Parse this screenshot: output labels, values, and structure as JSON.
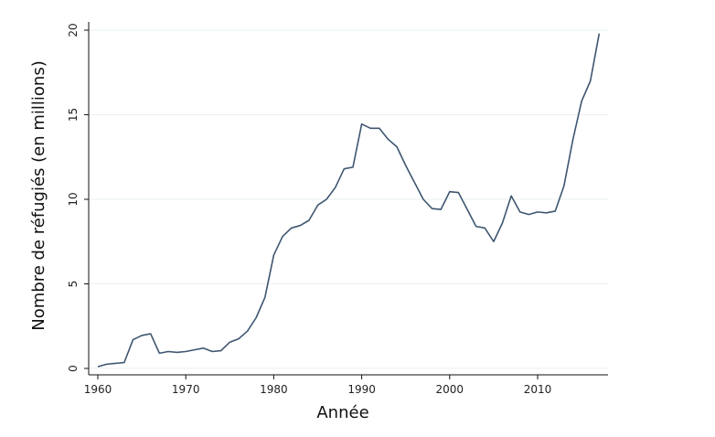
{
  "chart_data": {
    "type": "line",
    "title": "",
    "xlabel": "Année",
    "ylabel": "Nombre de réfugiés (en millions)",
    "xlim": [
      1960,
      2017
    ],
    "ylim": [
      0,
      20
    ],
    "x_ticks": [
      1960,
      1970,
      1980,
      1990,
      2000,
      2010
    ],
    "y_ticks": [
      0,
      5,
      10,
      15,
      20
    ],
    "grid": true,
    "legend": "none",
    "line_color": "#3e5670",
    "grid_color": "#eaf0f2",
    "series": [
      {
        "x": [
          1960,
          1961,
          1962,
          1963,
          1964,
          1965,
          1966,
          1967,
          1968,
          1969,
          1970,
          1971,
          1972,
          1973,
          1974,
          1975,
          1976,
          1977,
          1978,
          1979,
          1980,
          1981,
          1982,
          1983,
          1984,
          1985,
          1986,
          1987,
          1988,
          1989,
          1990,
          1991,
          1992,
          1993,
          1994,
          1995,
          1996,
          1997,
          1998,
          1999,
          2000,
          2001,
          2002,
          2003,
          2004,
          2005,
          2006,
          2007,
          2008,
          2009,
          2010,
          2011,
          2012,
          2013,
          2014,
          2015,
          2016,
          2017
        ],
        "values": [
          0.1,
          0.25,
          0.3,
          0.35,
          1.7,
          1.95,
          2.05,
          0.9,
          1.0,
          0.95,
          1.0,
          1.1,
          1.2,
          1.0,
          1.05,
          1.55,
          1.75,
          2.2,
          3.0,
          4.2,
          6.7,
          7.8,
          8.3,
          8.45,
          8.75,
          9.65,
          10.0,
          10.7,
          11.8,
          11.9,
          14.45,
          14.2,
          14.2,
          13.55,
          13.1,
          12.0,
          11.0,
          10.0,
          9.45,
          9.4,
          10.45,
          10.4,
          9.4,
          8.4,
          8.3,
          7.5,
          8.6,
          10.2,
          9.25,
          9.1,
          9.25,
          9.2,
          9.3,
          10.8,
          13.5,
          15.8,
          17.0,
          19.8
        ]
      }
    ]
  }
}
